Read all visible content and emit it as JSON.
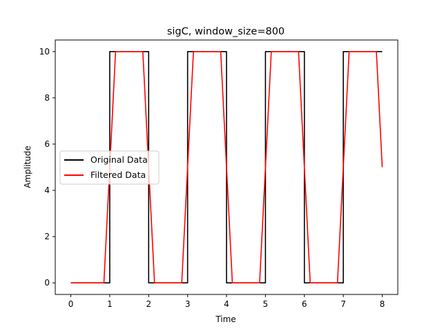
{
  "chart_data": {
    "type": "line",
    "title": "sigC, window_size=800",
    "xlabel": "Time",
    "ylabel": "Amplitude",
    "xlim": [
      -0.4,
      8.4
    ],
    "ylim": [
      -0.5,
      10.5
    ],
    "xticks": [
      0,
      1,
      2,
      3,
      4,
      5,
      6,
      7,
      8
    ],
    "yticks": [
      0,
      2,
      4,
      6,
      8,
      10
    ],
    "grid": false,
    "legend_position": "center-left",
    "series": [
      {
        "name": "Original Data",
        "color": "#000000",
        "x": [
          0,
          1,
          1,
          2,
          2,
          3,
          3,
          4,
          4,
          5,
          5,
          6,
          6,
          7,
          7,
          8
        ],
        "y": [
          0,
          0,
          10,
          10,
          0,
          0,
          10,
          10,
          0,
          0,
          10,
          10,
          0,
          0,
          10,
          10
        ]
      },
      {
        "name": "Filtered Data",
        "color": "#ff0000",
        "x": [
          0,
          0.85,
          1.15,
          1.85,
          2.15,
          2.85,
          3.15,
          3.85,
          4.15,
          4.85,
          5.15,
          5.85,
          6.15,
          6.85,
          7.15,
          7.85,
          8
        ],
        "y": [
          0,
          0,
          10,
          10,
          0,
          0,
          10,
          10,
          0,
          0,
          10,
          10,
          0,
          0,
          10,
          10,
          5
        ]
      }
    ]
  }
}
